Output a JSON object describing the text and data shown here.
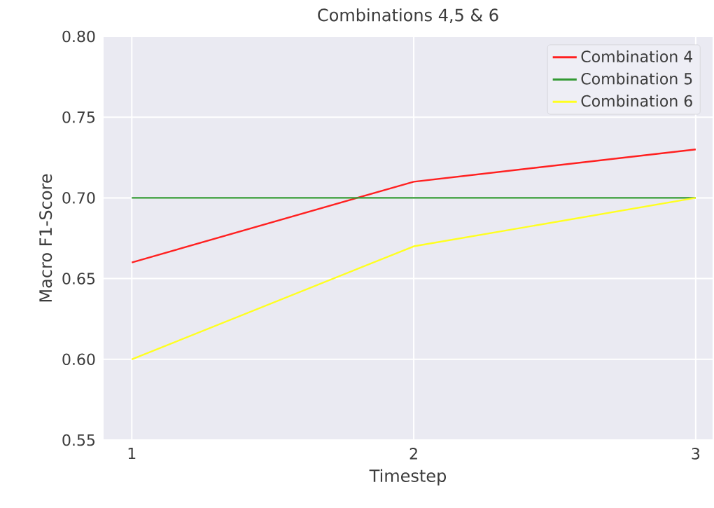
{
  "chart_data": {
    "type": "line",
    "title": "Combinations 4,5 & 6",
    "xlabel": "Timestep",
    "ylabel": "Macro F1-Score",
    "x": [
      1,
      2,
      3
    ],
    "series": [
      {
        "name": "Combination 4",
        "color": "#ff2020",
        "values": [
          0.66,
          0.71,
          0.73
        ]
      },
      {
        "name": "Combination 5",
        "color": "#339933",
        "values": [
          0.7,
          0.7,
          0.7
        ]
      },
      {
        "name": "Combination 6",
        "color": "#ffff20",
        "values": [
          0.6,
          0.67,
          0.7
        ]
      }
    ],
    "xlim": [
      0.9,
      3.06
    ],
    "ylim": [
      0.55,
      0.8
    ],
    "xticks": [
      1,
      2,
      3
    ],
    "yticks": [
      {
        "value": 0.55,
        "label": "0.55"
      },
      {
        "value": 0.6,
        "label": "0.60"
      },
      {
        "value": 0.65,
        "label": "0.65"
      },
      {
        "value": 0.7,
        "label": "0.70"
      },
      {
        "value": 0.75,
        "label": "0.75"
      },
      {
        "value": 0.8,
        "label": "0.80"
      }
    ],
    "grid": true,
    "legend": "top right",
    "marker": "none",
    "line_style": "solid"
  }
}
